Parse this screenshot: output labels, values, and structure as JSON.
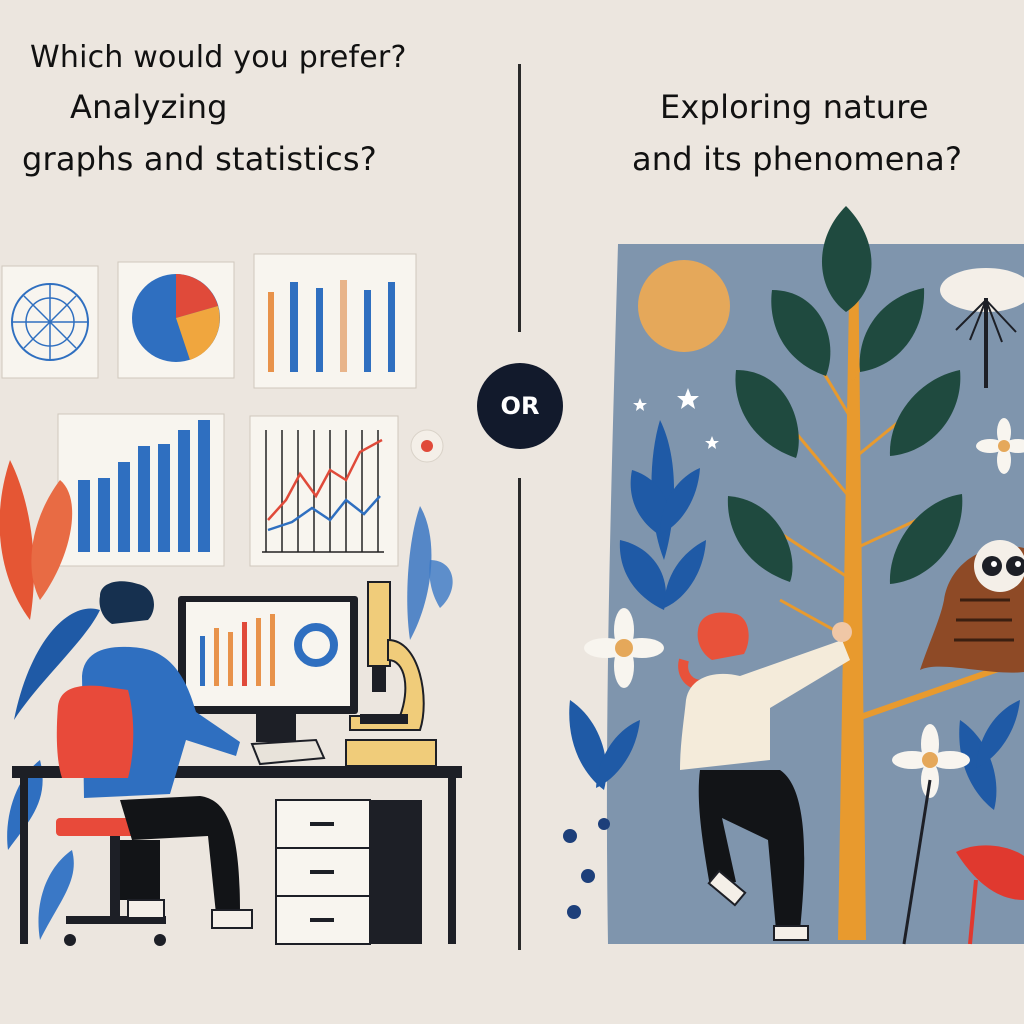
{
  "question": "Which would you prefer?",
  "left_option": {
    "line1": "Analyzing",
    "line2": "graphs and statistics?"
  },
  "or_label": "OR",
  "right_option": {
    "line1": "Exploring nature",
    "line2": "and its phenomena?"
  },
  "colors": {
    "background": "#ece6df",
    "ink": "#111111",
    "blue": "#2f6fc0",
    "orange": "#e8924a",
    "red": "#e04a3a",
    "nature_panel": "#7f95ad",
    "leaf": "#1f4a3f",
    "branch": "#e0912e"
  }
}
